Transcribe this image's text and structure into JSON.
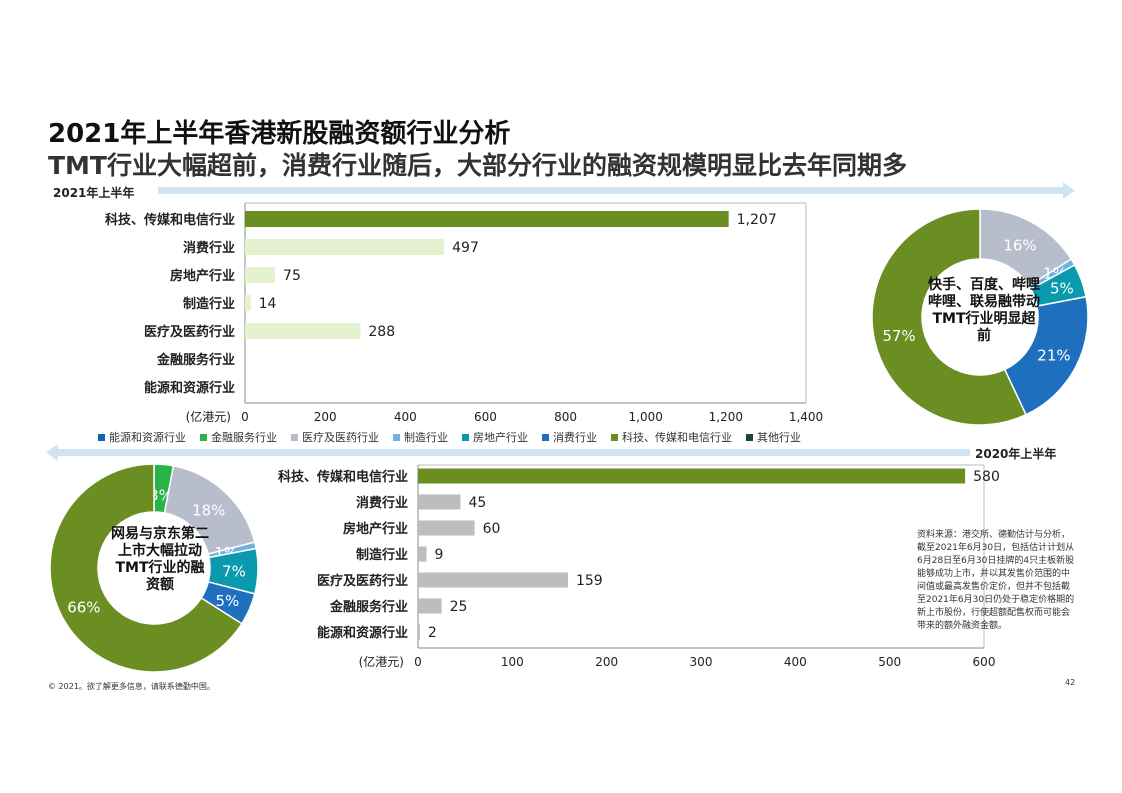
{
  "title": "2021年上半年香港新股融资额行业分析",
  "subtitle": "TMT行业大幅超前，消费行业随后，大部分行业的融资规模明显比去年同期多",
  "arrow_2021_label": "2021年上半年",
  "arrow_2020_label": "2020年上半年",
  "colors": {
    "tmt_green": "#6b8e23",
    "consumer_light_green": "#e4f2cf",
    "gray_bar": "#bdbdbd",
    "arrow_blue": "#cfe3f3",
    "donut_energy": "#0b63b3",
    "donut_finance": "#2bb34a",
    "donut_medical": "#b8bdcc",
    "donut_manufacturing": "#6fb1e2",
    "donut_property": "#0b9aad",
    "donut_consumer": "#1f6fbf",
    "donut_tmt": "#6b8e23",
    "donut_other": "#174b2c"
  },
  "legend": [
    {
      "label": "能源和资源行业",
      "color": "#0b63b3"
    },
    {
      "label": "金融服务行业",
      "color": "#2bb34a"
    },
    {
      "label": "医疗及医药行业",
      "color": "#b8bdcc"
    },
    {
      "label": "制造行业",
      "color": "#6fb1e2"
    },
    {
      "label": "房地产行业",
      "color": "#0b9aad"
    },
    {
      "label": "消费行业",
      "color": "#1f6fbf"
    },
    {
      "label": "科技、传媒和电信行业",
      "color": "#6b8e23"
    },
    {
      "label": "其他行业",
      "color": "#174b2c"
    }
  ],
  "donut_2021_label": "快手、百度、哔哩哔哩、联易融带动TMT行业明显超前",
  "donut_2020_label": "网易与京东第二上市大幅拉动TMT行业的融资额",
  "source_note": "资料来源：港交所、德勤估计与分析，截至2021年6月30日，包括估计计划从6月28日至6月30日挂牌的4只主板新股能够成功上市，并以其发售价范围的中间值或最高发售价定价，但并不包括截至2021年6月30日仍处于稳定价格期的新上市股份，行使超额配售权而可能会带来的额外融资金额。",
  "copyright": "© 2021。欲了解更多信息，请联系德勤中国。",
  "page_number": "42",
  "chart_data": [
    {
      "type": "bar",
      "orientation": "horizontal",
      "period": "2021年上半年",
      "categories": [
        "科技、传媒和电信行业",
        "消费行业",
        "房地产行业",
        "制造行业",
        "医疗及医药行业",
        "金融服务行业",
        "能源和资源行业"
      ],
      "values": [
        1207,
        497,
        75,
        14,
        288,
        null,
        null
      ],
      "value_labels": [
        "1,207",
        "497",
        "75",
        "14",
        "288",
        "",
        ""
      ],
      "xlabel": "(亿港元)",
      "xlim": [
        0,
        1400
      ],
      "xticks": [
        0,
        200,
        400,
        600,
        800,
        1000,
        1200,
        1400
      ],
      "xtick_labels": [
        "0",
        "200",
        "400",
        "600",
        "800",
        "1,000",
        "1,200",
        "1,400"
      ],
      "grid": false
    },
    {
      "type": "bar",
      "orientation": "horizontal",
      "period": "2020年上半年",
      "categories": [
        "科技、传媒和电信行业",
        "消费行业",
        "房地产行业",
        "制造行业",
        "医疗及医药行业",
        "金融服务行业",
        "能源和资源行业"
      ],
      "values": [
        580,
        45,
        60,
        9,
        159,
        25,
        2
      ],
      "value_labels": [
        "580",
        "45",
        "60",
        "9",
        "159",
        "25",
        "2"
      ],
      "xlabel": "(亿港元)",
      "xlim": [
        0,
        600
      ],
      "xticks": [
        0,
        100,
        200,
        300,
        400,
        500,
        600
      ],
      "xtick_labels": [
        "0",
        "100",
        "200",
        "300",
        "400",
        "500",
        "600"
      ],
      "grid": false
    },
    {
      "type": "pie",
      "donut": true,
      "period": "2021年上半年",
      "categories": [
        "医疗及医药行业",
        "制造行业",
        "房地产行业",
        "消费行业",
        "科技、传媒和电信行业"
      ],
      "values": [
        16,
        1,
        5,
        21,
        57
      ],
      "value_labels": [
        "16%",
        "1%",
        "5%",
        "21%",
        "57%"
      ],
      "colors": [
        "#b8bdcc",
        "#6fb1e2",
        "#0b9aad",
        "#1f6fbf",
        "#6b8e23"
      ]
    },
    {
      "type": "pie",
      "donut": true,
      "period": "2020年上半年",
      "categories": [
        "金融服务行业",
        "医疗及医药行业",
        "制造行业",
        "房地产行业",
        "消费行业",
        "科技、传媒和电信行业"
      ],
      "values": [
        3,
        18,
        1,
        7,
        5,
        66
      ],
      "value_labels": [
        "3%",
        "18%",
        "1%",
        "7%",
        "5%",
        "66%"
      ],
      "colors": [
        "#2bb34a",
        "#b8bdcc",
        "#6fb1e2",
        "#0b9aad",
        "#1f6fbf",
        "#6b8e23"
      ]
    }
  ]
}
